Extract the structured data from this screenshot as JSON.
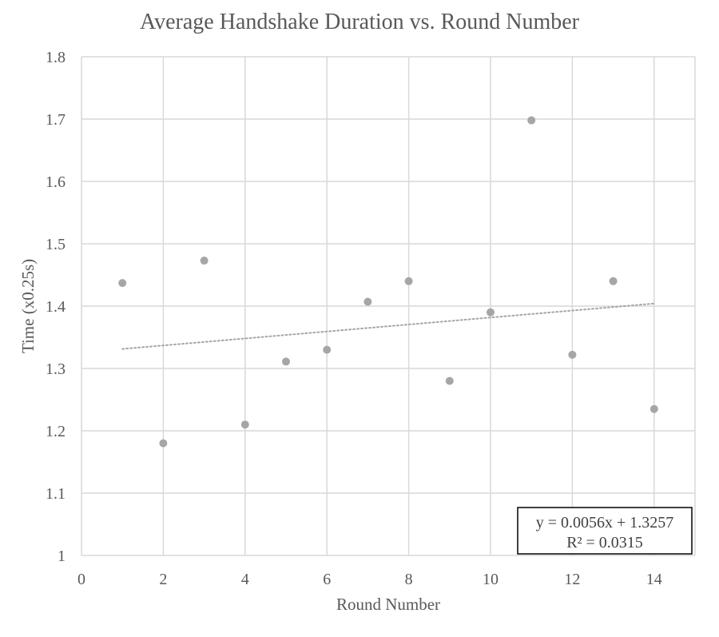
{
  "chart_data": {
    "type": "scatter",
    "title": "Average Handshake Duration vs. Round Number",
    "xlabel": "Round Number",
    "ylabel": "Time (x0.25s)",
    "xlim": [
      0,
      15
    ],
    "ylim": [
      1,
      1.8
    ],
    "xticks": [
      "0",
      "2",
      "4",
      "6",
      "8",
      "10",
      "12",
      "14"
    ],
    "yticks": [
      "1",
      "1.1",
      "1.2",
      "1.3",
      "1.4",
      "1.5",
      "1.6",
      "1.7",
      "1.8"
    ],
    "grid": true,
    "series": [
      {
        "x": [
          1,
          2,
          3,
          4,
          5,
          6,
          7,
          8,
          9,
          10,
          11,
          12,
          13,
          14
        ],
        "y": [
          1.437,
          1.18,
          1.473,
          1.21,
          1.311,
          1.33,
          1.407,
          1.44,
          1.28,
          1.39,
          1.698,
          1.322,
          1.44,
          1.235
        ]
      }
    ],
    "trendline": {
      "type": "linear",
      "slope": 0.0056,
      "intercept": 1.3257,
      "x_range": [
        1,
        14
      ],
      "style": "dotted",
      "equation_label": "y = 0.0056x + 1.3257",
      "r2_label": "R² = 0.0315",
      "label_position": "bottom-right"
    },
    "colors": {
      "marker": "#a6a6a6",
      "grid": "#d9d9d9",
      "trendline": "#a6a6a6",
      "text": "#595959"
    }
  }
}
